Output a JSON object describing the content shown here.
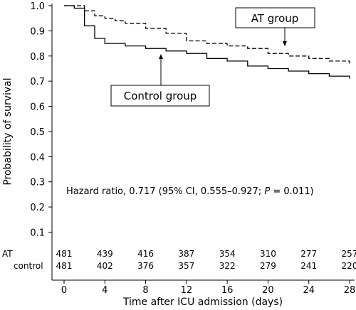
{
  "chart_data": {
    "type": "line",
    "subtype": "kaplan-meier",
    "xlabel": "Time after ICU admission (days)",
    "ylabel": "Probability of survival",
    "xlim": [
      0,
      28
    ],
    "ylim": [
      0,
      1.0
    ],
    "xticks": [
      "0",
      "4",
      "8",
      "12",
      "16",
      "20",
      "24",
      "28"
    ],
    "yticks": [
      "0.1",
      "0.2",
      "0.3",
      "0.4",
      "0.5",
      "0.6",
      "0.7",
      "0.8",
      "0.9",
      "1.0"
    ],
    "grid": false,
    "series": [
      {
        "name": "AT group",
        "style": "dashed",
        "color": "#000000",
        "x": [
          0,
          1,
          2,
          3,
          4,
          5,
          6,
          8,
          10,
          12,
          14,
          16,
          18,
          20,
          22,
          24,
          26,
          28
        ],
        "y": [
          1.0,
          1.0,
          0.98,
          0.96,
          0.95,
          0.94,
          0.93,
          0.91,
          0.89,
          0.86,
          0.85,
          0.84,
          0.83,
          0.81,
          0.8,
          0.79,
          0.78,
          0.77
        ]
      },
      {
        "name": "Control group",
        "style": "solid",
        "color": "#000000",
        "x": [
          0,
          1,
          2,
          3,
          4,
          6,
          8,
          10,
          12,
          14,
          16,
          18,
          20,
          22,
          24,
          26,
          28
        ],
        "y": [
          1.0,
          0.99,
          0.92,
          0.87,
          0.85,
          0.84,
          0.83,
          0.82,
          0.81,
          0.79,
          0.78,
          0.76,
          0.75,
          0.74,
          0.73,
          0.72,
          0.71
        ]
      }
    ],
    "annotations": {
      "at_label": "AT group",
      "control_label": "Control group",
      "hazard_prefix": "Hazard ratio, 0.717   (95% CI, 0.555–0.927; ",
      "hazard_p": "P",
      "hazard_suffix": " = 0.011)"
    },
    "risk_table": {
      "rows": [
        {
          "label": "AT",
          "values": [
            "481",
            "439",
            "416",
            "387",
            "354",
            "310",
            "277",
            "257"
          ]
        },
        {
          "label": "control",
          "values": [
            "481",
            "402",
            "376",
            "357",
            "322",
            "279",
            "241",
            "220"
          ]
        }
      ]
    }
  }
}
